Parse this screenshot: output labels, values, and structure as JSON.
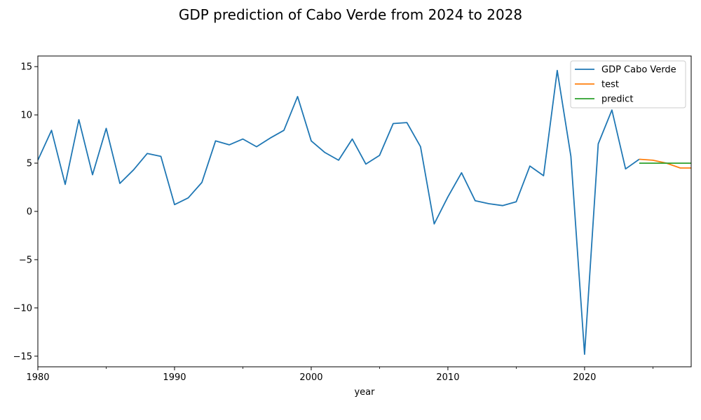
{
  "chart_data": {
    "type": "line",
    "title": "GDP prediction of Cabo Verde from 2024 to 2028",
    "xlabel": "year",
    "ylabel": "",
    "xlim": [
      1980,
      2027.8
    ],
    "ylim": [
      -16.1,
      16.1
    ],
    "x_ticks": [
      1980,
      1990,
      2000,
      2010,
      2020
    ],
    "x_minor_ticks": [
      1985,
      1995,
      2005,
      2015,
      2025
    ],
    "y_ticks": [
      -15,
      -10,
      -5,
      0,
      5,
      10,
      15
    ],
    "y_tick_labels": [
      "−15",
      "−10",
      "−5",
      "0",
      "5",
      "10",
      "15"
    ],
    "grid": false,
    "legend_position": "top-right",
    "series": [
      {
        "name": "GDP Cabo Verde",
        "color": "#1f77b4",
        "x": [
          1980,
          1981,
          1982,
          1983,
          1984,
          1985,
          1986,
          1987,
          1988,
          1989,
          1990,
          1991,
          1992,
          1993,
          1994,
          1995,
          1996,
          1997,
          1998,
          1999,
          2000,
          2001,
          2002,
          2003,
          2004,
          2005,
          2006,
          2007,
          2008,
          2009,
          2010,
          2011,
          2012,
          2013,
          2014,
          2015,
          2016,
          2017,
          2018,
          2019,
          2020,
          2021,
          2022,
          2023,
          2024
        ],
        "y": [
          5.3,
          8.4,
          2.8,
          9.5,
          3.8,
          8.6,
          2.9,
          4.3,
          6.0,
          5.7,
          0.7,
          1.4,
          3.0,
          7.3,
          6.9,
          7.5,
          6.7,
          7.6,
          8.4,
          11.9,
          7.3,
          6.1,
          5.3,
          7.5,
          4.9,
          5.8,
          9.1,
          9.2,
          6.7,
          -1.3,
          1.5,
          4.0,
          1.1,
          0.8,
          0.6,
          1.0,
          4.7,
          3.7,
          14.6,
          5.7,
          -14.8,
          7.0,
          10.5,
          4.4,
          5.4
        ]
      },
      {
        "name": "test",
        "color": "#ff7f0e",
        "x": [
          2024,
          2025,
          2026,
          2027,
          2028
        ],
        "y": [
          5.4,
          5.3,
          5.0,
          4.5,
          4.5
        ]
      },
      {
        "name": "predict",
        "color": "#2ca02c",
        "x": [
          2024,
          2025,
          2026,
          2027,
          2028
        ],
        "y": [
          5.0,
          5.0,
          5.0,
          5.0,
          5.0
        ]
      }
    ]
  }
}
